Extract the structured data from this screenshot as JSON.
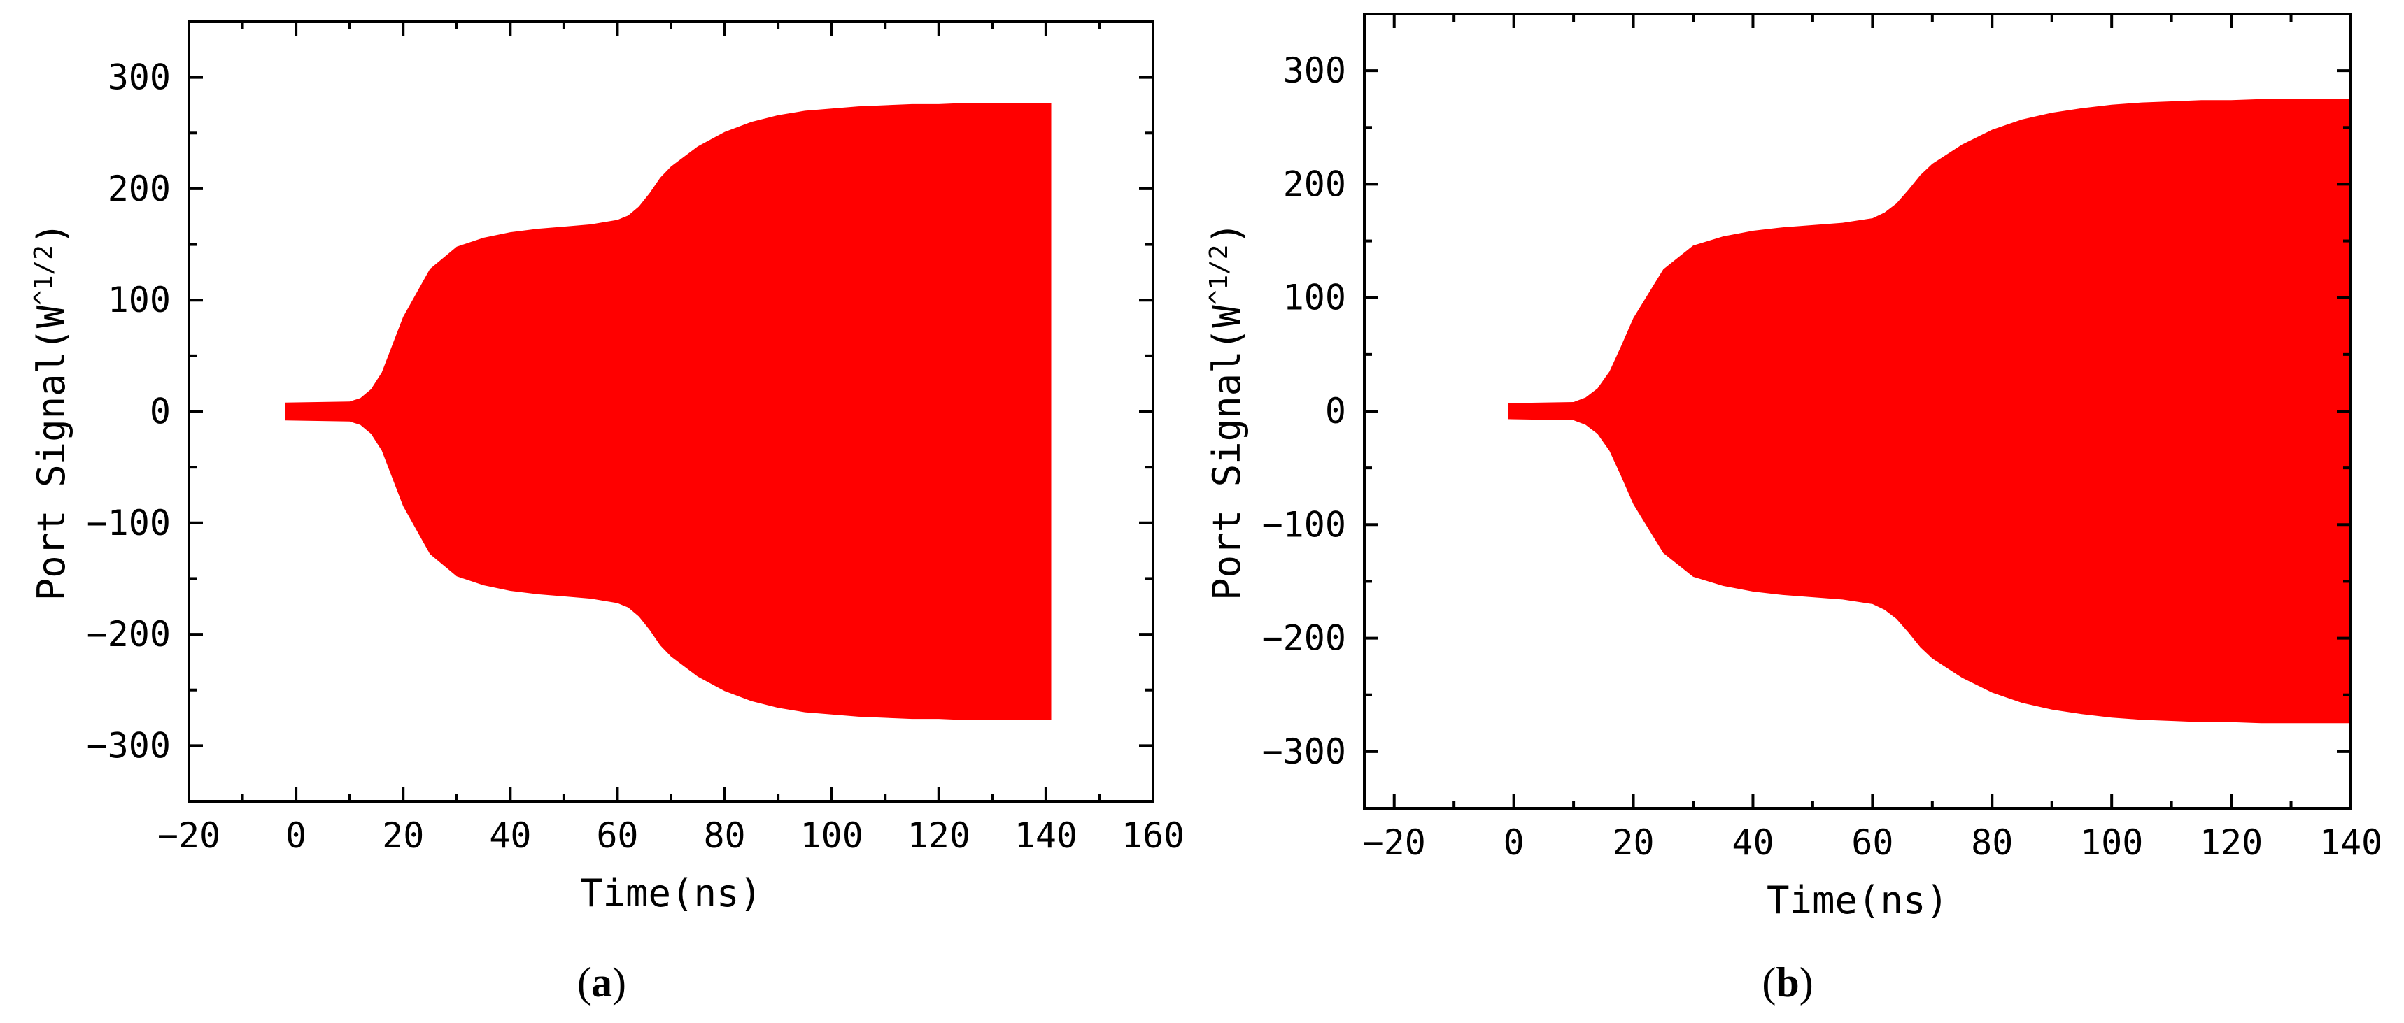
{
  "chart_data": [
    {
      "type": "area",
      "panel_label": "a",
      "xlabel": "Time(ns)",
      "ylabel": "Port Signal(W",
      "ylabel_sup": "^1/2",
      "ylabel_close": ")",
      "xlim": [
        -20,
        160
      ],
      "ylim": [
        -350,
        350
      ],
      "xticks": [
        -20,
        0,
        20,
        40,
        60,
        80,
        100,
        120,
        140,
        160
      ],
      "yticks": [
        -300,
        -200,
        -100,
        0,
        100,
        200,
        300
      ],
      "xtick_labels": [
        "−20",
        "0",
        "20",
        "40",
        "60",
        "80",
        "100",
        "120",
        "140",
        "160"
      ],
      "ytick_labels": [
        "−300",
        "−200",
        "−100",
        "0",
        "100",
        "200",
        "300"
      ],
      "color": "#ff0000",
      "grid": false,
      "envelope": {
        "x": [
          -2,
          10,
          12,
          14,
          16,
          18,
          20,
          25,
          30,
          35,
          40,
          45,
          50,
          55,
          60,
          62,
          64,
          66,
          68,
          70,
          75,
          80,
          85,
          90,
          95,
          100,
          105,
          110,
          115,
          120,
          125,
          130,
          135,
          141
        ],
        "y": [
          8,
          9,
          12,
          20,
          35,
          60,
          85,
          128,
          148,
          156,
          161,
          164,
          166,
          168,
          172,
          176,
          184,
          196,
          210,
          220,
          238,
          251,
          260,
          266,
          270,
          272,
          274,
          275,
          276,
          276,
          277,
          277,
          277,
          277
        ]
      }
    },
    {
      "type": "area",
      "panel_label": "b",
      "xlabel": "Time(ns)",
      "ylabel": "Port Signal(W",
      "ylabel_sup": "^1/2",
      "ylabel_close": ")",
      "xlim": [
        -25,
        140
      ],
      "ylim": [
        -350,
        350
      ],
      "xticks": [
        -20,
        0,
        20,
        40,
        60,
        80,
        100,
        120,
        140
      ],
      "yticks": [
        -300,
        -200,
        -100,
        0,
        100,
        200,
        300
      ],
      "xtick_labels": [
        "−20",
        "0",
        "20",
        "40",
        "60",
        "80",
        "100",
        "120",
        "140"
      ],
      "ytick_labels": [
        "−300",
        "−200",
        "−100",
        "0",
        "100",
        "200",
        "300"
      ],
      "color": "#ff0000",
      "grid": false,
      "envelope": {
        "x": [
          -1,
          10,
          12,
          14,
          16,
          18,
          20,
          25,
          30,
          35,
          40,
          45,
          50,
          55,
          60,
          62,
          64,
          66,
          68,
          70,
          75,
          80,
          85,
          90,
          95,
          100,
          105,
          110,
          115,
          120,
          125,
          130,
          135,
          140
        ],
        "y": [
          7,
          8,
          12,
          20,
          35,
          58,
          82,
          125,
          146,
          154,
          159,
          162,
          164,
          166,
          170,
          175,
          183,
          195,
          208,
          218,
          235,
          248,
          257,
          263,
          267,
          270,
          272,
          273,
          274,
          274,
          275,
          275,
          275,
          275
        ]
      }
    }
  ]
}
